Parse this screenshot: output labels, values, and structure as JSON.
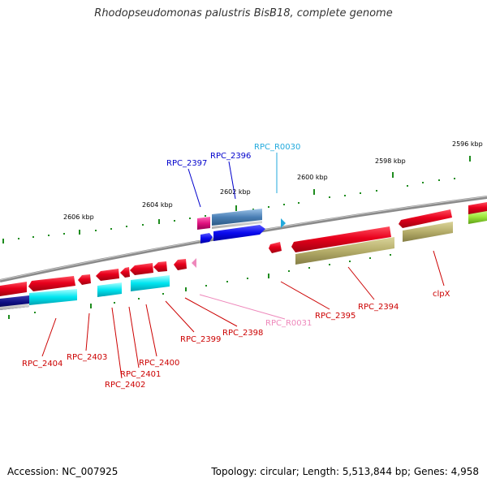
{
  "title": "Rhodopseudomonas palustris BisB18, complete genome",
  "footer": {
    "accession": "Accession: NC_007925",
    "summary": "Topology: circular; Length: 5,513,844 bp; Genes: 4,958"
  },
  "colors": {
    "forward_cds": "#e8001c",
    "reverse_cds": "#e8001c",
    "cog_cyan": "#00e5f0",
    "cog_olive": "#b5ad6a",
    "cog_navy": "#0d0d80",
    "cog_blue": "#0a0aee",
    "cog_steel": "#4a7fb5",
    "cog_magenta": "#e0127f",
    "cog_lime": "#9ee83c",
    "backbone": "#808080",
    "tick_green": "#1e8c1e",
    "label_red": "#cc0000",
    "label_blue": "#0000cc",
    "label_cyan": "#22aadd",
    "label_pink": "#ee88bb"
  },
  "kbp_labels": [
    "2596 kbp",
    "2598 kbp",
    "2600 kbp",
    "2602 kbp",
    "2604 kbp",
    "2606 kbp"
  ],
  "gene_labels": {
    "rpc_2397": "RPC_2397",
    "rpc_2396": "RPC_2396",
    "rpc_r0030": "RPC_R0030",
    "rpc_2404": "RPC_2404",
    "rpc_2403": "RPC_2403",
    "rpc_2402": "RPC_2402",
    "rpc_2401": "RPC_2401",
    "rpc_2400": "RPC_2400",
    "rpc_2399": "RPC_2399",
    "rpc_2398": "RPC_2398",
    "rpc_r0031": "RPC_R0031",
    "rpc_2395": "RPC_2395",
    "rpc_2394": "RPC_2394",
    "clpx": "clpX"
  }
}
